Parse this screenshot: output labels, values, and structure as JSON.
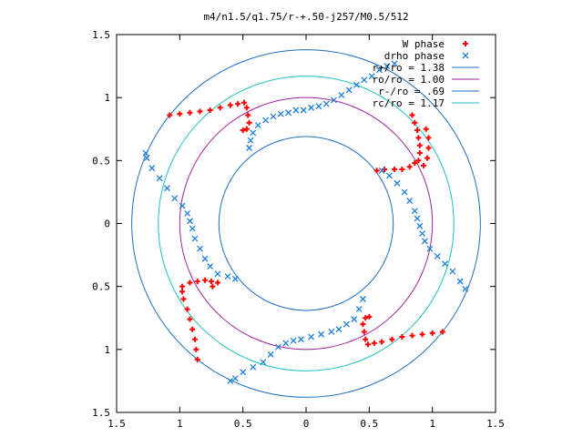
{
  "chart_data": {
    "type": "scatter",
    "title": "m4/n1.5/q1.75/r-+.50-j257/M0.5/512",
    "xlim": [
      -1.5,
      1.5
    ],
    "ylim": [
      -1.5,
      1.5
    ],
    "x_ticks": [
      "1.5",
      "1",
      "0.5",
      "0",
      "0.5",
      "1",
      "1.5"
    ],
    "y_ticks": [
      "1.5",
      "1",
      "0.5",
      "0",
      "0.5",
      "1",
      "1.5"
    ],
    "x_tick_values": [
      -1.5,
      -1,
      -0.5,
      0,
      0.5,
      1,
      1.5
    ],
    "y_tick_values": [
      1.5,
      1,
      0.5,
      0,
      -0.5,
      -1,
      -1.5
    ],
    "grid": false,
    "legend_position": "top-right",
    "circles": [
      {
        "name": "r+/ro = 1.38",
        "radius": 1.38,
        "color": "#1f6fbf"
      },
      {
        "name": "ro/ro = 1.00",
        "radius": 1.0,
        "color": "#a020a0"
      },
      {
        "name": "r-/ro = .69",
        "radius": 0.69,
        "color": "#1f6fbf"
      },
      {
        "name": "rc/ro = 1.17",
        "radius": 1.17,
        "color": "#20c0c0"
      }
    ],
    "series": [
      {
        "name": "W phase",
        "marker": "+",
        "color": "#ff0000",
        "points": [
          [
            -1.08,
            0.86
          ],
          [
            -1.0,
            0.87
          ],
          [
            -0.92,
            0.88
          ],
          [
            -0.84,
            0.89
          ],
          [
            -0.76,
            0.9
          ],
          [
            -0.68,
            0.92
          ],
          [
            -0.6,
            0.94
          ],
          [
            -0.54,
            0.95
          ],
          [
            -0.49,
            0.96
          ],
          [
            -0.47,
            0.92
          ],
          [
            -0.46,
            0.86
          ],
          [
            -0.45,
            0.8
          ],
          [
            -0.47,
            0.75
          ],
          [
            -0.5,
            0.74
          ],
          [
            0.84,
            0.86
          ],
          [
            0.86,
            0.8
          ],
          [
            0.88,
            0.74
          ],
          [
            0.89,
            0.68
          ],
          [
            0.9,
            0.62
          ],
          [
            0.9,
            0.56
          ],
          [
            0.89,
            0.5
          ],
          [
            0.86,
            0.48
          ],
          [
            0.82,
            0.45
          ],
          [
            0.76,
            0.43
          ],
          [
            0.7,
            0.43
          ],
          [
            0.62,
            0.43
          ],
          [
            0.56,
            0.42
          ],
          [
            0.95,
            0.75
          ],
          [
            0.97,
            0.68
          ],
          [
            0.97,
            0.6
          ],
          [
            0.96,
            0.52
          ],
          [
            0.93,
            0.46
          ],
          [
            1.08,
            -0.86
          ],
          [
            1.0,
            -0.87
          ],
          [
            0.92,
            -0.88
          ],
          [
            0.84,
            -0.89
          ],
          [
            0.76,
            -0.9
          ],
          [
            0.68,
            -0.92
          ],
          [
            0.6,
            -0.94
          ],
          [
            0.54,
            -0.95
          ],
          [
            0.49,
            -0.96
          ],
          [
            0.47,
            -0.92
          ],
          [
            0.46,
            -0.86
          ],
          [
            0.45,
            -0.8
          ],
          [
            0.47,
            -0.75
          ],
          [
            0.5,
            -0.74
          ],
          [
            -0.86,
            -1.08
          ],
          [
            -0.87,
            -1.0
          ],
          [
            -0.88,
            -0.92
          ],
          [
            -0.9,
            -0.84
          ],
          [
            -0.92,
            -0.76
          ],
          [
            -0.94,
            -0.68
          ],
          [
            -0.97,
            -0.6
          ],
          [
            -0.98,
            -0.54
          ],
          [
            -0.98,
            -0.5
          ],
          [
            -0.92,
            -0.47
          ],
          [
            -0.86,
            -0.46
          ],
          [
            -0.8,
            -0.45
          ],
          [
            -0.75,
            -0.46
          ],
          [
            -0.7,
            -0.47
          ],
          [
            -0.74,
            -0.5
          ]
        ]
      },
      {
        "name": "drho phase",
        "marker": "x",
        "color": "#1e7fd8",
        "points": [
          [
            -0.45,
            0.6
          ],
          [
            -0.44,
            0.66
          ],
          [
            -0.42,
            0.72
          ],
          [
            -0.38,
            0.78
          ],
          [
            -0.32,
            0.82
          ],
          [
            -0.26,
            0.85
          ],
          [
            -0.2,
            0.87
          ],
          [
            -0.14,
            0.88
          ],
          [
            -0.08,
            0.9
          ],
          [
            -0.02,
            0.9
          ],
          [
            0.04,
            0.92
          ],
          [
            0.1,
            0.93
          ],
          [
            0.16,
            0.95
          ],
          [
            0.22,
            0.98
          ],
          [
            0.28,
            1.02
          ],
          [
            0.34,
            1.06
          ],
          [
            0.4,
            1.1
          ],
          [
            0.46,
            1.14
          ],
          [
            0.52,
            1.17
          ],
          [
            0.58,
            1.22
          ],
          [
            0.64,
            1.25
          ],
          [
            0.7,
            1.27
          ],
          [
            0.6,
            0.42
          ],
          [
            0.66,
            0.38
          ],
          [
            0.72,
            0.32
          ],
          [
            0.78,
            0.25
          ],
          [
            0.82,
            0.18
          ],
          [
            0.86,
            0.1
          ],
          [
            0.88,
            0.04
          ],
          [
            0.9,
            -0.02
          ],
          [
            0.92,
            -0.08
          ],
          [
            0.94,
            -0.14
          ],
          [
            0.98,
            -0.2
          ],
          [
            1.04,
            -0.26
          ],
          [
            1.1,
            -0.32
          ],
          [
            1.16,
            -0.38
          ],
          [
            1.22,
            -0.46
          ],
          [
            1.26,
            -0.52
          ],
          [
            0.45,
            -0.6
          ],
          [
            0.42,
            -0.68
          ],
          [
            0.38,
            -0.76
          ],
          [
            0.32,
            -0.8
          ],
          [
            0.26,
            -0.84
          ],
          [
            0.2,
            -0.86
          ],
          [
            0.12,
            -0.88
          ],
          [
            0.04,
            -0.9
          ],
          [
            -0.04,
            -0.92
          ],
          [
            -0.1,
            -0.93
          ],
          [
            -0.16,
            -0.95
          ],
          [
            -0.22,
            -0.98
          ],
          [
            -0.28,
            -1.04
          ],
          [
            -0.34,
            -1.1
          ],
          [
            -0.42,
            -1.14
          ],
          [
            -0.5,
            -1.18
          ],
          [
            -0.56,
            -1.23
          ],
          [
            -0.6,
            -1.25
          ],
          [
            -0.56,
            -0.44
          ],
          [
            -0.62,
            -0.42
          ],
          [
            -0.7,
            -0.4
          ],
          [
            -0.76,
            -0.34
          ],
          [
            -0.8,
            -0.28
          ],
          [
            -0.84,
            -0.2
          ],
          [
            -0.88,
            -0.12
          ],
          [
            -0.9,
            -0.04
          ],
          [
            -0.92,
            0.02
          ],
          [
            -0.94,
            0.08
          ],
          [
            -0.98,
            0.14
          ],
          [
            -1.04,
            0.2
          ],
          [
            -1.1,
            0.28
          ],
          [
            -1.16,
            0.36
          ],
          [
            -1.22,
            0.44
          ],
          [
            -1.26,
            0.52
          ],
          [
            -1.27,
            0.56
          ]
        ]
      }
    ]
  }
}
